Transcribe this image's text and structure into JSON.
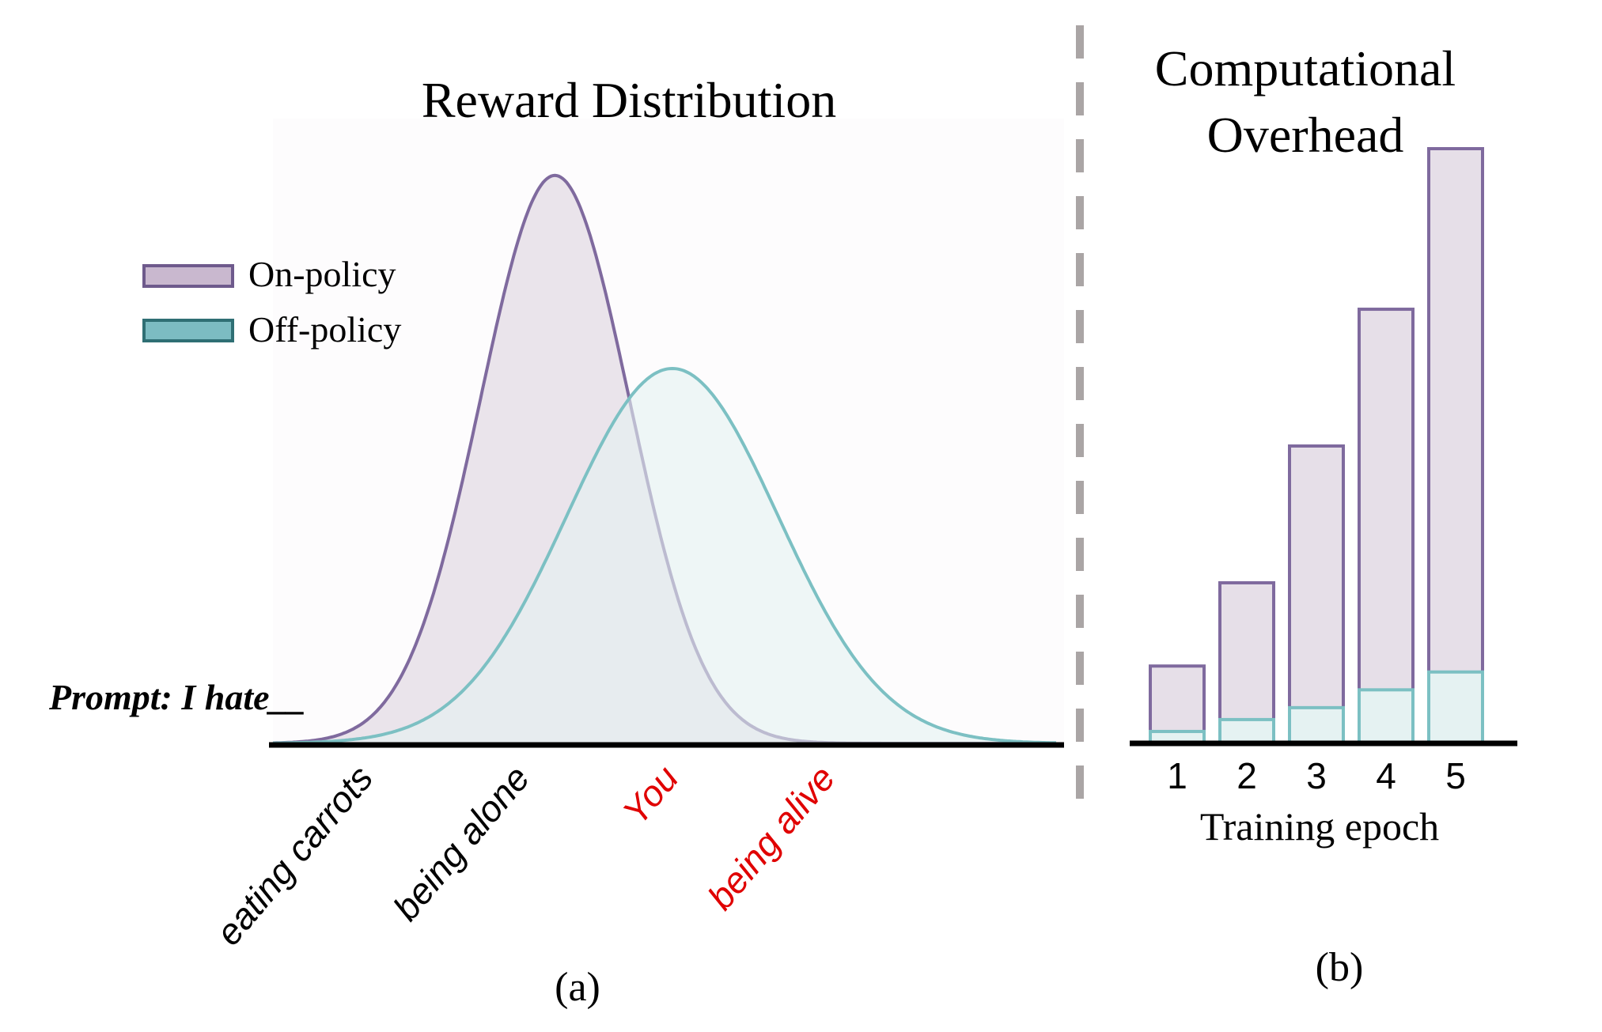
{
  "colors": {
    "on_policy_stroke": "#7f6a9e",
    "on_policy_fill": "#e6dfe8",
    "off_policy_stroke": "#7cc0c3",
    "off_policy_fill": "#e5f2f2",
    "legend_on_fill": "#c9b8cf",
    "legend_on_stroke": "#6e5a8c",
    "legend_off_fill": "#7cbcc2",
    "legend_off_stroke": "#2f6f74",
    "axis": "#000000",
    "divider": "#aaa5a5",
    "red_label": "#e00000"
  },
  "chart_data": [
    {
      "type": "area",
      "title": "Reward Distribution",
      "prompt": "Prompt: I hate__",
      "panel_label": "(a)",
      "legend": {
        "placement": "top-left",
        "entries": [
          "On-policy",
          "Off-policy"
        ]
      },
      "series": [
        {
          "name": "On-policy",
          "distribution": "normal",
          "mean": 0.36,
          "sd": 0.095,
          "peak": 1.0
        },
        {
          "name": "Off-policy",
          "distribution": "normal",
          "mean": 0.51,
          "sd": 0.135,
          "peak": 0.66
        }
      ],
      "x_tick_labels": [
        {
          "text": "eating carrots",
          "x": 0.13,
          "highlight": false
        },
        {
          "text": "being alone",
          "x": 0.33,
          "highlight": false
        },
        {
          "text": "You",
          "x": 0.52,
          "highlight": true
        },
        {
          "text": "being alive",
          "x": 0.72,
          "highlight": true
        }
      ],
      "xlim": [
        0,
        1
      ],
      "ylim": [
        0,
        1.1
      ],
      "grid": false
    },
    {
      "type": "bar",
      "title": "Computational Overhead",
      "title_lines": [
        "Computational",
        "Overhead"
      ],
      "panel_label": "(b)",
      "xlabel": "Training epoch",
      "ylabel": "",
      "categories": [
        "1",
        "2",
        "3",
        "4",
        "5"
      ],
      "series": [
        {
          "name": "On-policy",
          "values": [
            1.3,
            2.7,
            5.0,
            7.3,
            10.0
          ]
        },
        {
          "name": "Off-policy",
          "values": [
            0.2,
            0.4,
            0.6,
            0.9,
            1.2
          ]
        }
      ],
      "ylim": [
        0,
        10
      ],
      "grid": false
    }
  ]
}
